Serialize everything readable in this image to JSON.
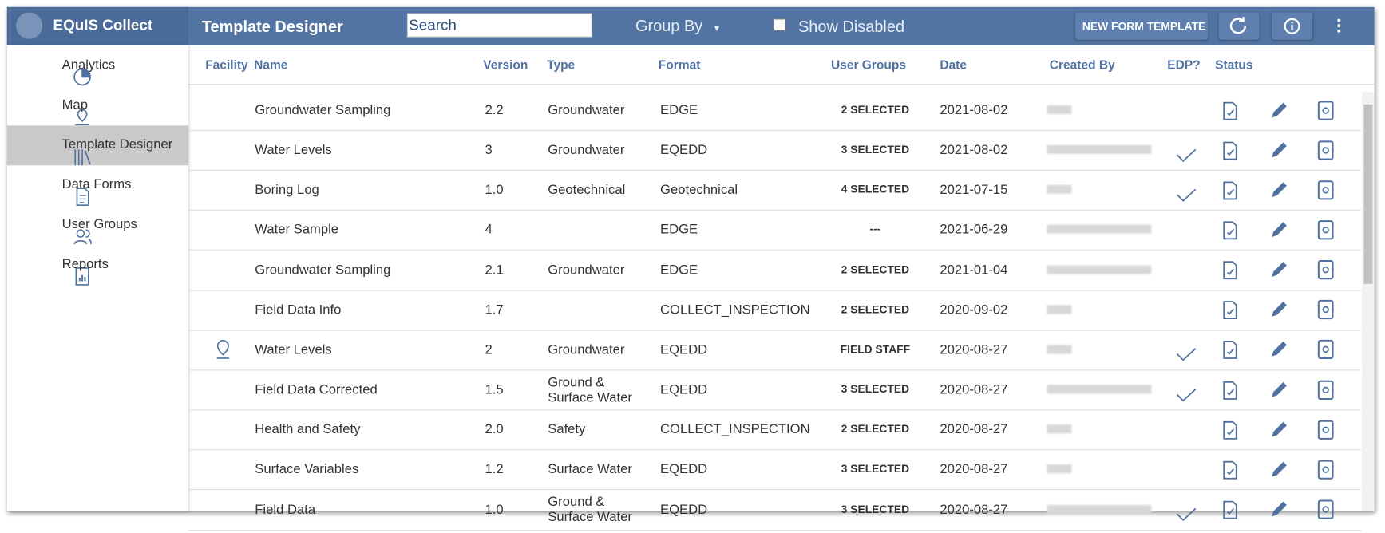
{
  "app": {
    "name": "EQuIS Collect"
  },
  "nav": [
    "Analytics",
    "Map",
    "Template Designer",
    "Data Forms",
    "User Groups",
    "Reports"
  ],
  "nav_selected": 2,
  "toolbar": {
    "title": "Template Designer",
    "search": "Search",
    "group_by": "Group By",
    "show_disabled": "Show Disabled",
    "new_button": "NEW FORM TEMPLATE"
  },
  "table": {
    "columns": [
      "Facility",
      "Name",
      "Version",
      "Type",
      "Format",
      "User Groups",
      "Date",
      "Created By",
      "EDP?",
      "Status"
    ],
    "rows": [
      {
        "facility": false,
        "name": "Groundwater Sampling",
        "version": "2.2",
        "type": "Groundwater",
        "format": "EDGE",
        "user_groups": "2 SELECTED",
        "date": "2021-08-02",
        "edp": false
      },
      {
        "facility": false,
        "name": "Water Levels",
        "version": "3",
        "type": "Groundwater",
        "format": "EQEDD",
        "user_groups": "3 SELECTED",
        "date": "2021-08-02",
        "edp": true
      },
      {
        "facility": false,
        "name": "Boring Log",
        "version": "1.0",
        "type": "Geotechnical",
        "format": "Geotechnical",
        "user_groups": "4 SELECTED",
        "date": "2021-07-15",
        "edp": true
      },
      {
        "facility": false,
        "name": "Water Sample",
        "version": "4",
        "type": "",
        "format": "EDGE",
        "user_groups": "---",
        "date": "2021-06-29",
        "edp": false
      },
      {
        "facility": false,
        "name": "Groundwater Sampling",
        "version": "2.1",
        "type": "Groundwater",
        "format": "EDGE",
        "user_groups": "2 SELECTED",
        "date": "2021-01-04",
        "edp": false
      },
      {
        "facility": false,
        "name": "Field Data Info",
        "version": "1.7",
        "type": "",
        "format": "COLLECT_INSPECTION",
        "user_groups": "2 SELECTED",
        "date": "2020-09-02",
        "edp": false
      },
      {
        "facility": true,
        "name": "Water Levels",
        "version": "2",
        "type": "Groundwater",
        "format": "EQEDD",
        "user_groups": "FIELD STAFF",
        "date": "2020-08-27",
        "edp": true
      },
      {
        "facility": false,
        "name": "Field Data Corrected",
        "version": "1.5",
        "type": "Ground & Surface Water",
        "format": "EQEDD",
        "user_groups": "3 SELECTED",
        "date": "2020-08-27",
        "edp": true
      },
      {
        "facility": false,
        "name": "Health and Safety",
        "version": "2.0",
        "type": "Safety",
        "format": "COLLECT_INSPECTION",
        "user_groups": "2 SELECTED",
        "date": "2020-08-27",
        "edp": false
      },
      {
        "facility": false,
        "name": "Surface Variables",
        "version": "1.2",
        "type": "Surface Water",
        "format": "EQEDD",
        "user_groups": "3 SELECTED",
        "date": "2020-08-27",
        "edp": false
      },
      {
        "facility": false,
        "name": "Field Data",
        "version": "1.0",
        "type": "Ground & Surface Water",
        "format": "EQEDD",
        "user_groups": "3 SELECTED",
        "date": "2020-08-27",
        "edp": true
      }
    ]
  }
}
